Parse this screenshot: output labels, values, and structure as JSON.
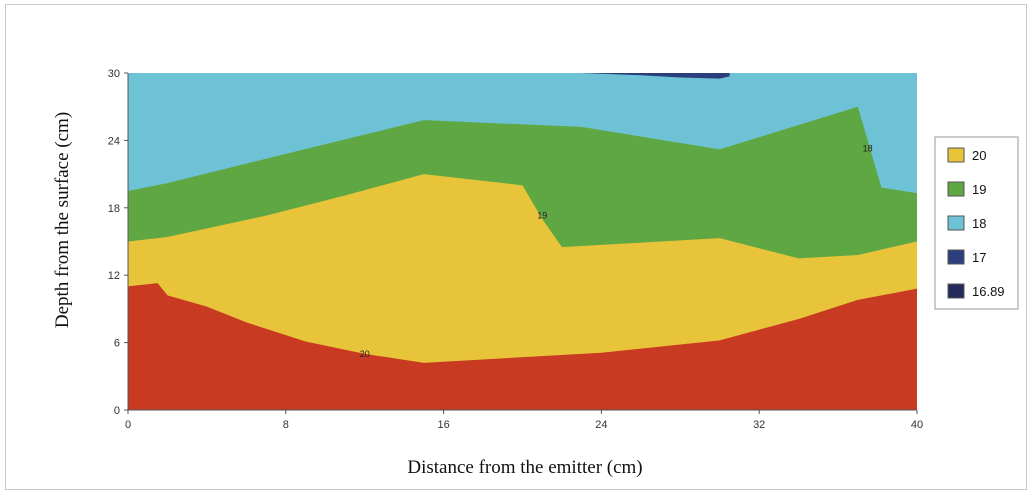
{
  "chart_data": {
    "type": "area",
    "xlabel": "Distance from the emitter (cm)",
    "ylabel": "Depth from the surface (cm)",
    "xlim": [
      0,
      40
    ],
    "ylim": [
      0,
      30
    ],
    "xticks": [
      "0",
      "8",
      "16",
      "24",
      "32",
      "40"
    ],
    "yticks": [
      "0",
      "6",
      "12",
      "18",
      "24",
      "30"
    ],
    "legend_position": "right",
    "legend": [
      {
        "label": "20",
        "color": "#e8c43a"
      },
      {
        "label": "19",
        "color": "#5fa742"
      },
      {
        "label": "18",
        "color": "#6dc2d6"
      },
      {
        "label": "17",
        "color": "#2a3f7c"
      },
      {
        "label": "16.89",
        "color": "#232a5a"
      }
    ],
    "regions": [
      {
        "name": "red-region",
        "color": "#c83a22",
        "boundary": [
          [
            0,
            11
          ],
          [
            1.5,
            11.3
          ],
          [
            2,
            10.2
          ],
          [
            4,
            9.2
          ],
          [
            6,
            7.8
          ],
          [
            9,
            6.1
          ],
          [
            12,
            5
          ],
          [
            15,
            4.2
          ],
          [
            18,
            4.5
          ],
          [
            24,
            5.1
          ],
          [
            30,
            6.2
          ],
          [
            34,
            8.1
          ],
          [
            37,
            9.8
          ],
          [
            40,
            10.8
          ]
        ]
      },
      {
        "name": "yellow-region",
        "color": "#e8c43a",
        "boundary": [
          [
            0,
            15
          ],
          [
            2,
            15.4
          ],
          [
            7,
            17.3
          ],
          [
            11,
            19.1
          ],
          [
            15,
            21
          ],
          [
            20,
            20
          ],
          [
            21,
            17
          ],
          [
            22,
            14.5
          ],
          [
            30,
            15.3
          ],
          [
            34,
            13.5
          ],
          [
            37,
            13.8
          ],
          [
            40,
            15
          ]
        ]
      },
      {
        "name": "green-region",
        "color": "#5fa742",
        "boundary": [
          [
            0,
            19.5
          ],
          [
            2,
            20.2
          ],
          [
            8,
            22.8
          ],
          [
            15,
            25.8
          ],
          [
            23,
            25.2
          ],
          [
            30,
            23.2
          ],
          [
            37,
            27
          ],
          [
            38.2,
            19.8
          ],
          [
            40,
            19.3
          ]
        ]
      },
      {
        "name": "cyan-region",
        "color": "#6dc2d6",
        "boundary": [
          [
            0,
            30
          ],
          [
            40,
            30
          ]
        ]
      }
    ],
    "patches": [
      {
        "name": "dark-blue-patch",
        "color": "#2a3f7c",
        "points": [
          [
            23,
            30
          ],
          [
            26,
            29.8
          ],
          [
            28,
            29.6
          ],
          [
            30,
            29.5
          ],
          [
            30.5,
            29.7
          ],
          [
            30.5,
            30
          ]
        ]
      }
    ],
    "contour_labels": [
      {
        "label": "20",
        "x": 12,
        "y": 5
      },
      {
        "label": "19",
        "x": 21,
        "y": 17.3
      },
      {
        "label": "18",
        "x": 37.5,
        "y": 23.3
      }
    ]
  }
}
